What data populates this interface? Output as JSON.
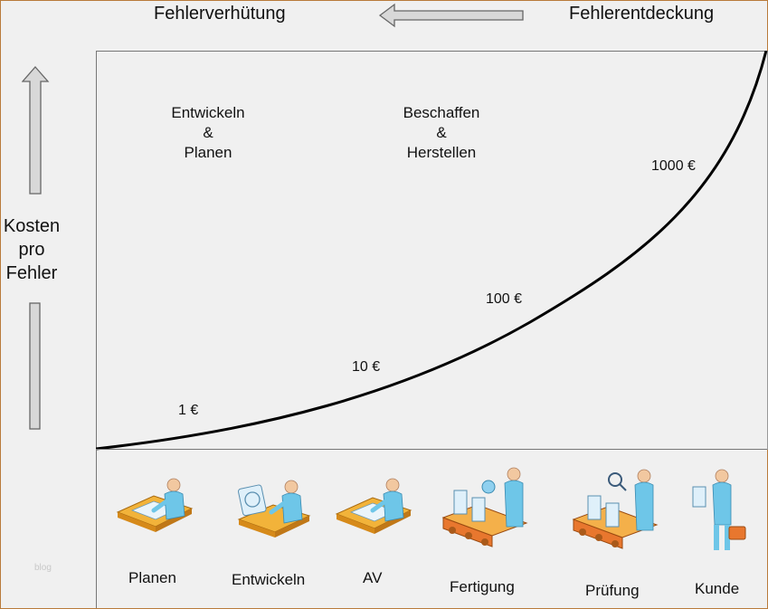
{
  "header": {
    "left_label": "Fehlerverhütung",
    "right_label": "Fehlerentdeckung"
  },
  "y_axis": {
    "title_line1": "Kosten",
    "title_line2": "pro",
    "title_line3": "Fehler"
  },
  "phases": {
    "phase1_line1": "Entwickeln",
    "phase1_line2": "&",
    "phase1_line3": "Planen",
    "phase2_line1": "Beschaffen",
    "phase2_line2": "&",
    "phase2_line3": "Herstellen"
  },
  "costs": {
    "c1": "1 €",
    "c2": "10 €",
    "c3": "100 €",
    "c4": "1000 €"
  },
  "stages": [
    {
      "label": "Planen",
      "icon": "planning-desk-icon"
    },
    {
      "label": "Entwickeln",
      "icon": "developing-desk-icon"
    },
    {
      "label": "AV",
      "icon": "work-preparation-desk-icon"
    },
    {
      "label": "Fertigung",
      "icon": "manufacturing-conveyor-icon"
    },
    {
      "label": "Prüfung",
      "icon": "inspection-conveyor-icon"
    },
    {
      "label": "Kunde",
      "icon": "customer-icon"
    }
  ],
  "watermark": "blog",
  "colors": {
    "frame": "#b87a3a",
    "person": "#6ec6e8",
    "desk": "#f2b33a",
    "conveyor": "#e8772e"
  }
}
